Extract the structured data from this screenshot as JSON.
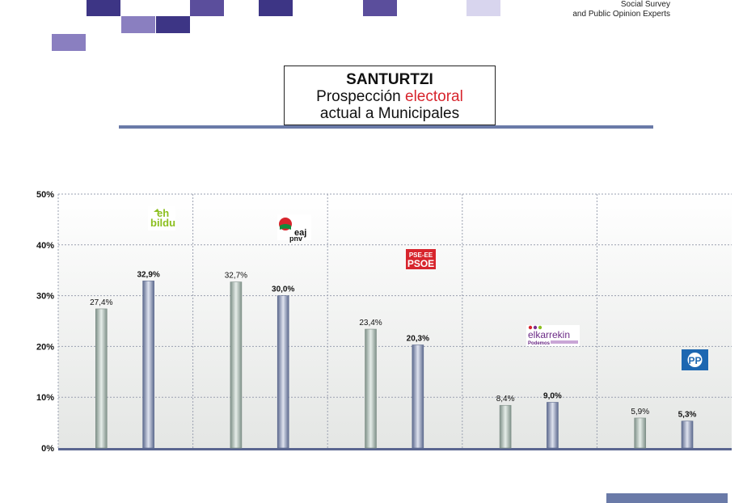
{
  "header": {
    "line1": "Social Survey",
    "line2": "and Public Opinion Experts"
  },
  "title": {
    "main": "SANTURTZI",
    "sub_before": "Prospección ",
    "sub_highlight": "electoral",
    "sub_line2": "actual a Municipales",
    "highlight_color": "#d7252d"
  },
  "colors": {
    "bar_a": "#a9b8ae",
    "bar_b": "#8c97b3",
    "grid": "#9aa0b0",
    "axis": "#5a6690",
    "accent_squares": "#5b4e9c"
  },
  "chart_data": {
    "type": "bar",
    "ylim": [
      0,
      50
    ],
    "yticks": [
      "0%",
      "10%",
      "20%",
      "30%",
      "40%",
      "50%"
    ],
    "ytick_values": [
      0,
      10,
      20,
      30,
      40,
      50
    ],
    "groups": [
      {
        "party": "EH Bildu",
        "logo_text": [
          "eh",
          "bildu"
        ],
        "logo": "ehbildu-logo",
        "values": [
          27.4,
          32.9
        ],
        "labels": [
          "27,4%",
          "32,9%"
        ]
      },
      {
        "party": "EAJ-PNV",
        "logo_text": [
          "eaj",
          "pnv"
        ],
        "logo": "eajpnv-logo",
        "values": [
          32.7,
          30.0
        ],
        "labels": [
          "32,7%",
          "30,0%"
        ]
      },
      {
        "party": "PSE-EE PSOE",
        "logo_text": [
          "PSE-EE",
          "PSOE"
        ],
        "logo": "psoe-logo",
        "values": [
          23.4,
          20.3
        ],
        "labels": [
          "23,4%",
          "20,3%"
        ]
      },
      {
        "party": "Elkarrekin Podemos",
        "logo_text": [
          "elkarrekin",
          "Podemos"
        ],
        "logo": "elkarrekin-logo",
        "values": [
          8.4,
          9.0
        ],
        "labels": [
          "8,4%",
          "9,0%"
        ]
      },
      {
        "party": "PP",
        "logo_text": [
          "PP"
        ],
        "logo": "pp-logo",
        "values": [
          5.9,
          5.3
        ],
        "labels": [
          "5,9%",
          "5,3%"
        ]
      }
    ]
  }
}
